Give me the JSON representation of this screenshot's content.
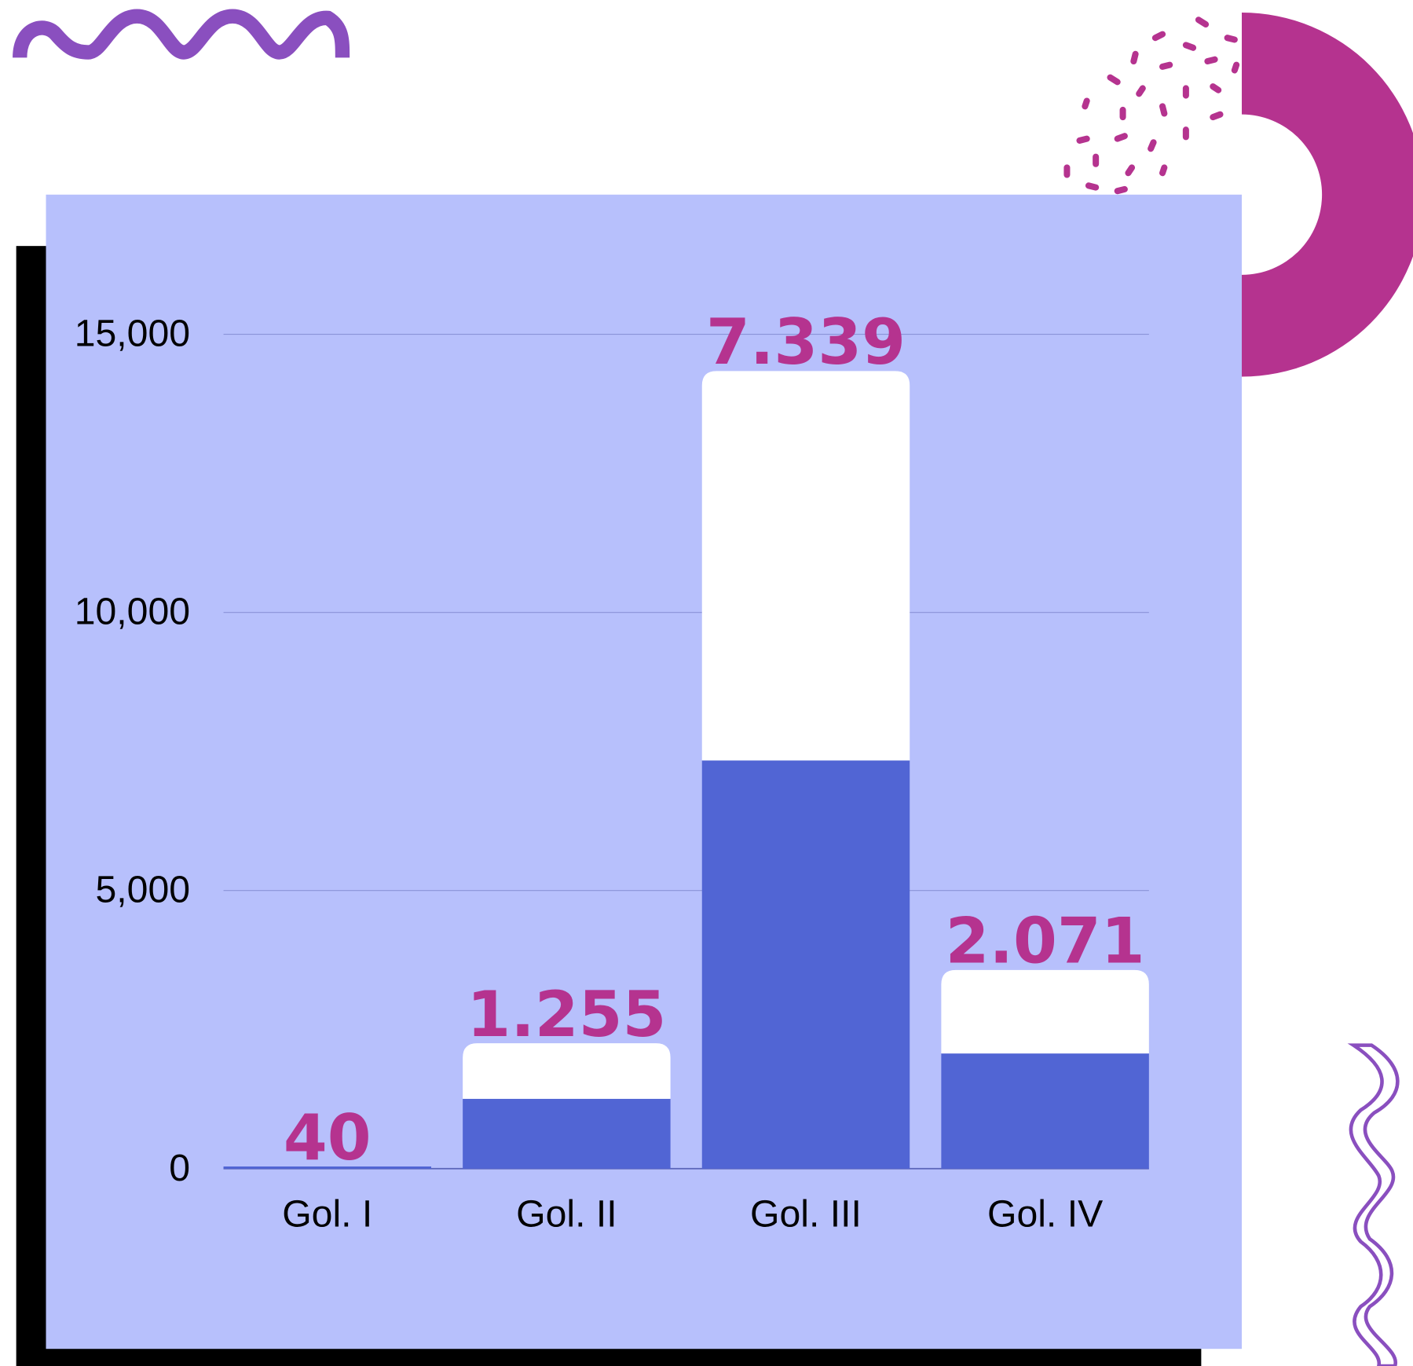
{
  "chart_data": {
    "type": "stacked_bar",
    "categories": [
      "Gol. I",
      "Gol. II",
      "Gol. III",
      "Gol. IV"
    ],
    "series": [
      {
        "color": "#5165d4",
        "values": [
          40,
          1255,
          7339,
          2071
        ],
        "value_labels": [
          "40",
          "1.255",
          "7.339",
          "2.071"
        ]
      },
      {
        "color": "#ffffff",
        "values": [
          0,
          1000,
          7000,
          1500
        ]
      }
    ],
    "ylim": [
      0,
      15000
    ],
    "yticks": [
      0,
      {
        "value": 5000,
        "label": "5,000"
      },
      {
        "value": 10000,
        "label": "10,000"
      },
      {
        "value": 15000,
        "label": "15,000"
      }
    ],
    "grid": true,
    "value_label_color": "#b5338f"
  }
}
